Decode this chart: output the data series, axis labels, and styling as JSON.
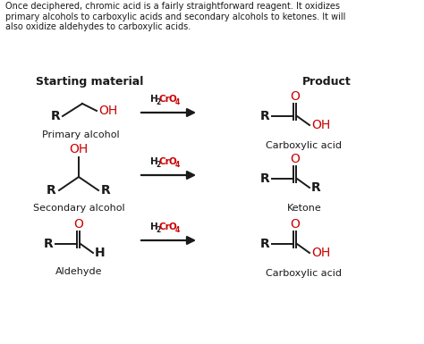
{
  "bg_color": "#ffffff",
  "text_color": "#1a1a1a",
  "red_color": "#cc0000",
  "header_text": "Once deciphered, chromic acid is a fairly straightforward reagent. It oxidizes\nprimary alcohols to carboxylic acids and secondary alcohols to ketones. It will\nalso oxidize aldehydes to carboxylic acids.",
  "col1_header": "Starting material",
  "col2_header": "Product",
  "fig_w": 4.74,
  "fig_h": 3.85,
  "dpi": 100,
  "header_fontsize": 7.0,
  "label_fontsize": 8.0,
  "mol_fontsize": 10.0,
  "col_fontsize": 9.0,
  "reagent_fontsize": 7.5,
  "sub_fontsize": 5.5
}
